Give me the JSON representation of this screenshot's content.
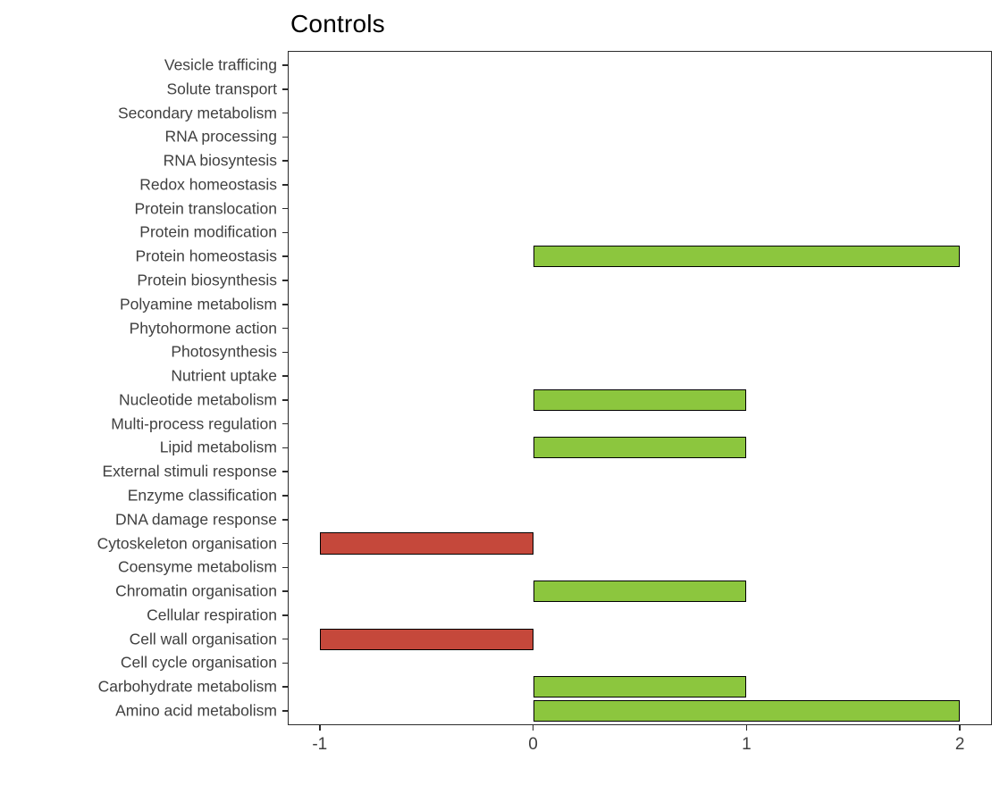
{
  "chart_data": {
    "type": "bar",
    "orientation": "horizontal",
    "title": "Controls",
    "xlabel": "",
    "ylabel": "",
    "grid": false,
    "legend": "none",
    "xlim": [
      -1.15,
      2.15
    ],
    "x_ticks": [
      -1,
      0,
      1,
      2
    ],
    "categories": [
      "Vesicle trafficing",
      "Solute transport",
      "Secondary metabolism",
      "RNA processing",
      "RNA biosyntesis",
      "Redox homeostasis",
      "Protein translocation",
      "Protein modification",
      "Protein homeostasis",
      "Protein  biosynthesis",
      "Polyamine metabolism",
      "Phytohormone action",
      "Photosynthesis",
      "Nutrient uptake",
      "Nucleotide metabolism",
      "Multi-process regulation",
      "Lipid metabolism",
      "External stimuli response",
      "Enzyme classification",
      "DNA damage response",
      "Cytoskeleton organisation",
      "Coensyme metabolism",
      "Chromatin organisation",
      "Cellular respiration",
      "Cell wall organisation",
      "Cell cycle organisation",
      "Carbohydrate metabolism",
      "Amino acid metabolism"
    ],
    "values": [
      0,
      0,
      0,
      0,
      0,
      0,
      0,
      0,
      2,
      0,
      0,
      0,
      0,
      0,
      1,
      0,
      1,
      0,
      0,
      0,
      -1,
      0,
      1,
      0,
      -1,
      0,
      1,
      2
    ],
    "colors": {
      "positive": "#8CC63E",
      "negative": "#C5483B",
      "bar_border": "#000000",
      "axis": "#2b2b2b",
      "text": "#404040"
    }
  }
}
